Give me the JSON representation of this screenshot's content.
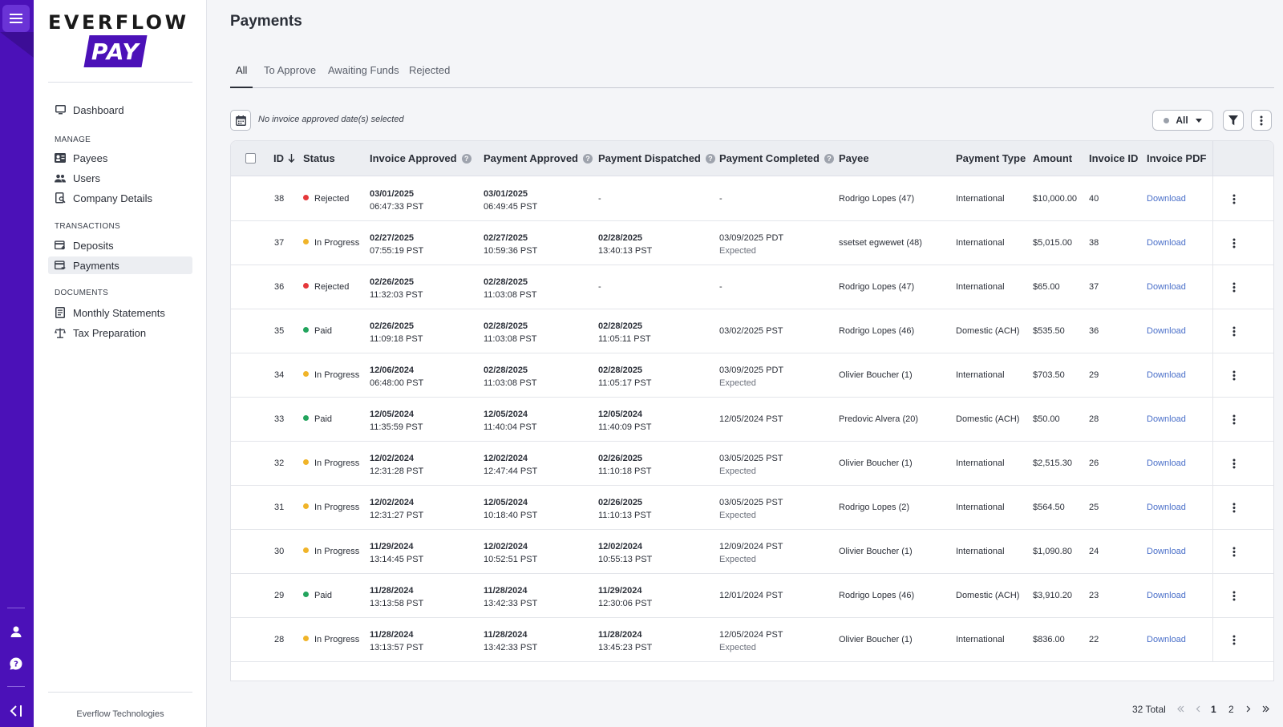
{
  "app": {
    "logo_word": "EVERFLOW",
    "logo_pay": "PAY",
    "footer": "Everflow Technologies"
  },
  "sidebar": {
    "dashboard": "Dashboard",
    "sections": {
      "manage": "MANAGE",
      "transactions": "TRANSACTIONS",
      "documents": "DOCUMENTS"
    },
    "items": {
      "payees": "Payees",
      "users": "Users",
      "company_details": "Company Details",
      "deposits": "Deposits",
      "payments": "Payments",
      "monthly_statements": "Monthly Statements",
      "tax_preparation": "Tax Preparation"
    },
    "active": "payments"
  },
  "page": {
    "title": "Payments",
    "tabs": [
      "All",
      "To Approve",
      "Awaiting Funds",
      "Rejected"
    ],
    "active_tab": "All",
    "date_filter_text": "No invoice approved date(s) selected",
    "status_filter": "All"
  },
  "table": {
    "headers": {
      "id": "ID",
      "status": "Status",
      "invoice_approved": "Invoice Approved",
      "payment_approved": "Payment Approved",
      "payment_dispatched": "Payment Dispatched",
      "payment_completed": "Payment Completed",
      "payee": "Payee",
      "payment_type": "Payment Type",
      "amount": "Amount",
      "invoice_id": "Invoice ID",
      "invoice_pdf": "Invoice PDF"
    },
    "sort_icon": "arrow-down-icon",
    "status_colors": {
      "Rejected": "#e5383b",
      "In Progress": "#f0b429",
      "Paid": "#22a45d"
    },
    "rows": [
      {
        "id": "38",
        "status": "Rejected",
        "inv_date": "03/01/2025",
        "inv_time": "06:47:33 PST",
        "pa_date": "03/01/2025",
        "pa_time": "06:49:45 PST",
        "pd_date": "",
        "pd_time": "",
        "pd_dash": "-",
        "pc": "-",
        "pc_exp": "",
        "payee": "Rodrigo Lopes (47)",
        "type": "International",
        "amount": "$10,000.00",
        "invoice_id": "40",
        "pdf": "Download"
      },
      {
        "id": "37",
        "status": "In Progress",
        "inv_date": "02/27/2025",
        "inv_time": "07:55:19 PST",
        "pa_date": "02/27/2025",
        "pa_time": "10:59:36 PST",
        "pd_date": "02/28/2025",
        "pd_time": "13:40:13 PST",
        "pd_dash": "",
        "pc": "03/09/2025 PDT",
        "pc_exp": "Expected",
        "payee": "ssetset egwewet (48)",
        "type": "International",
        "amount": "$5,015.00",
        "invoice_id": "38",
        "pdf": "Download"
      },
      {
        "id": "36",
        "status": "Rejected",
        "inv_date": "02/26/2025",
        "inv_time": "11:32:03 PST",
        "pa_date": "02/28/2025",
        "pa_time": "11:03:08 PST",
        "pd_date": "",
        "pd_time": "",
        "pd_dash": "-",
        "pc": "-",
        "pc_exp": "",
        "payee": "Rodrigo Lopes (47)",
        "type": "International",
        "amount": "$65.00",
        "invoice_id": "37",
        "pdf": "Download"
      },
      {
        "id": "35",
        "status": "Paid",
        "inv_date": "02/26/2025",
        "inv_time": "11:09:18 PST",
        "pa_date": "02/28/2025",
        "pa_time": "11:03:08 PST",
        "pd_date": "02/28/2025",
        "pd_time": "11:05:11 PST",
        "pd_dash": "",
        "pc": "03/02/2025 PST",
        "pc_exp": "",
        "payee": "Rodrigo Lopes (46)",
        "type": "Domestic (ACH)",
        "amount": "$535.50",
        "invoice_id": "36",
        "pdf": "Download"
      },
      {
        "id": "34",
        "status": "In Progress",
        "inv_date": "12/06/2024",
        "inv_time": "06:48:00 PST",
        "pa_date": "02/28/2025",
        "pa_time": "11:03:08 PST",
        "pd_date": "02/28/2025",
        "pd_time": "11:05:17 PST",
        "pd_dash": "",
        "pc": "03/09/2025 PDT",
        "pc_exp": "Expected",
        "payee": "Olivier Boucher (1)",
        "type": "International",
        "amount": "$703.50",
        "invoice_id": "29",
        "pdf": "Download"
      },
      {
        "id": "33",
        "status": "Paid",
        "inv_date": "12/05/2024",
        "inv_time": "11:35:59 PST",
        "pa_date": "12/05/2024",
        "pa_time": "11:40:04 PST",
        "pd_date": "12/05/2024",
        "pd_time": "11:40:09 PST",
        "pd_dash": "",
        "pc": "12/05/2024 PST",
        "pc_exp": "",
        "payee": "Predovic Alvera (20)",
        "type": "Domestic (ACH)",
        "amount": "$50.00",
        "invoice_id": "28",
        "pdf": "Download"
      },
      {
        "id": "32",
        "status": "In Progress",
        "inv_date": "12/02/2024",
        "inv_time": "12:31:28 PST",
        "pa_date": "12/02/2024",
        "pa_time": "12:47:44 PST",
        "pd_date": "02/26/2025",
        "pd_time": "11:10:18 PST",
        "pd_dash": "",
        "pc": "03/05/2025 PST",
        "pc_exp": "Expected",
        "payee": "Olivier Boucher (1)",
        "type": "International",
        "amount": "$2,515.30",
        "invoice_id": "26",
        "pdf": "Download"
      },
      {
        "id": "31",
        "status": "In Progress",
        "inv_date": "12/02/2024",
        "inv_time": "12:31:27 PST",
        "pa_date": "12/05/2024",
        "pa_time": "10:18:40 PST",
        "pd_date": "02/26/2025",
        "pd_time": "11:10:13 PST",
        "pd_dash": "",
        "pc": "03/05/2025 PST",
        "pc_exp": "Expected",
        "payee": "Rodrigo Lopes (2)",
        "type": "International",
        "amount": "$564.50",
        "invoice_id": "25",
        "pdf": "Download"
      },
      {
        "id": "30",
        "status": "In Progress",
        "inv_date": "11/29/2024",
        "inv_time": "13:14:45 PST",
        "pa_date": "12/02/2024",
        "pa_time": "10:52:51 PST",
        "pd_date": "12/02/2024",
        "pd_time": "10:55:13 PST",
        "pd_dash": "",
        "pc": "12/09/2024 PST",
        "pc_exp": "Expected",
        "payee": "Olivier Boucher (1)",
        "type": "International",
        "amount": "$1,090.80",
        "invoice_id": "24",
        "pdf": "Download"
      },
      {
        "id": "29",
        "status": "Paid",
        "inv_date": "11/28/2024",
        "inv_time": "13:13:58 PST",
        "pa_date": "11/28/2024",
        "pa_time": "13:42:33 PST",
        "pd_date": "11/29/2024",
        "pd_time": "12:30:06 PST",
        "pd_dash": "",
        "pc": "12/01/2024 PST",
        "pc_exp": "",
        "payee": "Rodrigo Lopes (46)",
        "type": "Domestic (ACH)",
        "amount": "$3,910.20",
        "invoice_id": "23",
        "pdf": "Download"
      },
      {
        "id": "28",
        "status": "In Progress",
        "inv_date": "11/28/2024",
        "inv_time": "13:13:57 PST",
        "pa_date": "11/28/2024",
        "pa_time": "13:42:33 PST",
        "pd_date": "11/28/2024",
        "pd_time": "13:45:23 PST",
        "pd_dash": "",
        "pc": "12/05/2024 PST",
        "pc_exp": "Expected",
        "payee": "Olivier Boucher (1)",
        "type": "International",
        "amount": "$836.00",
        "invoice_id": "22",
        "pdf": "Download"
      }
    ]
  },
  "pagination": {
    "total": "32 Total",
    "pages": [
      "1",
      "2"
    ],
    "current": "1"
  }
}
